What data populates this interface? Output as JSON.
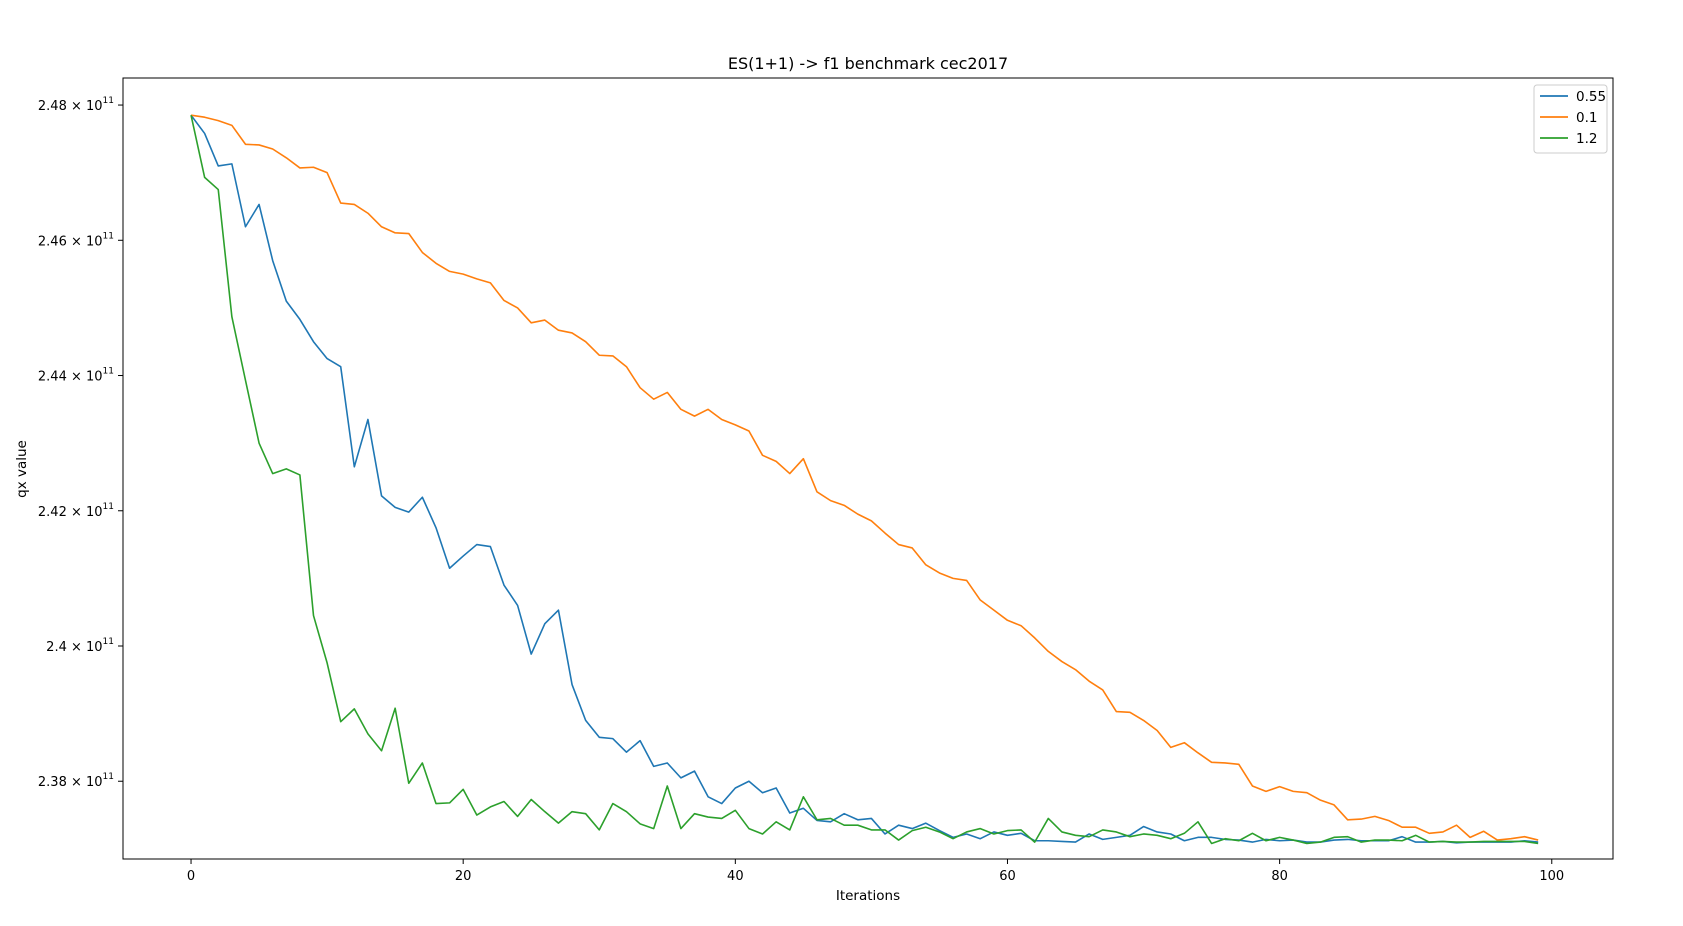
{
  "chart_data": {
    "type": "line",
    "title": "ES(1+1) -> f1 benchmark cec2017",
    "xlabel": "Iterations",
    "ylabel": "qx value",
    "xlim": [
      -5,
      104.5
    ],
    "ylim": [
      236850000000.0,
      248400000000.0
    ],
    "x_ticks": [
      0,
      20,
      40,
      60,
      80,
      100
    ],
    "x_tick_labels": [
      "0",
      "20",
      "40",
      "60",
      "80",
      "100"
    ],
    "y_ticks": [
      238000000000.0,
      240000000000.0,
      242000000000.0,
      244000000000.0,
      246000000000.0,
      248000000000.0
    ],
    "y_tick_labels": [
      {
        "mantissa": "2.38",
        "exp": "11"
      },
      {
        "mantissa": "2.4",
        "exp": "11"
      },
      {
        "mantissa": "2.42",
        "exp": "11"
      },
      {
        "mantissa": "2.44",
        "exp": "11"
      },
      {
        "mantissa": "2.46",
        "exp": "11"
      },
      {
        "mantissa": "2.48",
        "exp": "11"
      }
    ],
    "grid": false,
    "legend_position": "top-right",
    "series": [
      {
        "name": "0.55",
        "color": "#1f77b4",
        "y": [
          2.4785,
          2.4758,
          2.471,
          2.4713,
          2.462,
          2.4653,
          2.457,
          2.451,
          2.4483,
          2.445,
          2.4425,
          2.4413,
          2.4265,
          2.4335,
          2.4222,
          2.4205,
          2.4198,
          2.422,
          2.4175,
          2.4115,
          2.4133,
          2.415,
          2.4147,
          2.409,
          2.406,
          2.3988,
          2.4033,
          2.4053,
          2.3943,
          2.389,
          2.3865,
          2.3863,
          2.3843,
          2.386,
          2.3822,
          2.3827,
          2.3805,
          2.3815,
          2.3777,
          2.3767,
          2.379,
          2.38,
          2.3783,
          2.379,
          2.3753,
          2.376,
          2.3742,
          2.374,
          2.3752,
          2.3743,
          2.3745,
          2.3722,
          2.3735,
          2.373,
          2.3738,
          2.3727,
          2.3717,
          2.3722,
          2.3715,
          2.3725,
          2.372,
          2.3723,
          2.3712,
          2.3712,
          2.3711,
          2.371,
          2.3722,
          2.3714,
          2.3717,
          2.372,
          2.3733,
          2.3725,
          2.3722,
          2.3712,
          2.3717,
          2.3717,
          2.3714,
          2.3713,
          2.371,
          2.3714,
          2.3712,
          2.3713,
          2.371,
          2.371,
          2.3713,
          2.3714,
          2.3712,
          2.3712,
          2.3712,
          2.3718,
          2.371,
          2.371,
          2.3711,
          2.3709,
          2.371,
          2.371,
          2.371,
          2.371,
          2.3712,
          2.371
        ]
      },
      {
        "name": "0.1",
        "color": "#ff7f0e",
        "y": [
          2.4785,
          2.4782,
          2.4777,
          2.477,
          2.4742,
          2.4741,
          2.4735,
          2.4722,
          2.4707,
          2.4708,
          2.47,
          2.4655,
          2.4653,
          2.464,
          2.462,
          2.4611,
          2.461,
          2.4582,
          2.4566,
          2.4554,
          2.455,
          2.4543,
          2.4537,
          2.4511,
          2.45,
          2.4478,
          2.4482,
          2.4467,
          2.4463,
          2.445,
          2.443,
          2.4429,
          2.4413,
          2.4382,
          2.4365,
          2.4375,
          2.435,
          2.434,
          2.435,
          2.4335,
          2.4327,
          2.4318,
          2.4282,
          2.4273,
          2.4255,
          2.4277,
          2.4228,
          2.4215,
          2.4208,
          2.4195,
          2.4185,
          2.4167,
          2.415,
          2.4145,
          2.412,
          2.4108,
          2.41,
          2.4097,
          2.4068,
          2.4053,
          2.4038,
          2.403,
          2.4012,
          2.3992,
          2.3977,
          2.3965,
          2.3948,
          2.3935,
          2.3903,
          2.3902,
          2.389,
          2.3875,
          2.385,
          2.3857,
          2.3842,
          2.3828,
          2.3827,
          2.3825,
          2.3793,
          2.3785,
          2.3792,
          2.3785,
          2.3783,
          2.3772,
          2.3765,
          2.3743,
          2.3744,
          2.3748,
          2.3742,
          2.3732,
          2.3732,
          2.3723,
          2.3725,
          2.3735,
          2.3717,
          2.3726,
          2.3713,
          2.3715,
          2.3718,
          2.3713
        ]
      },
      {
        "name": "1.2",
        "color": "#2ca02c",
        "y": [
          2.4785,
          2.4693,
          2.4675,
          2.4487,
          2.4393,
          2.43,
          2.4255,
          2.4262,
          2.4253,
          2.4045,
          2.3975,
          2.3888,
          2.3907,
          2.387,
          2.3845,
          2.3908,
          2.3797,
          2.3827,
          2.3767,
          2.3768,
          2.3788,
          2.375,
          2.3762,
          2.377,
          2.3748,
          2.3773,
          2.3755,
          2.3738,
          2.3755,
          2.3752,
          2.3728,
          2.3767,
          2.3755,
          2.3737,
          2.373,
          2.3793,
          2.373,
          2.3752,
          2.3747,
          2.3745,
          2.3757,
          2.373,
          2.3722,
          2.374,
          2.3728,
          2.3777,
          2.3743,
          2.3745,
          2.3735,
          2.3735,
          2.3728,
          2.3728,
          2.3713,
          2.3727,
          2.3732,
          2.3725,
          2.3715,
          2.3725,
          2.373,
          2.3722,
          2.3727,
          2.3728,
          2.371,
          2.3745,
          2.3725,
          2.372,
          2.3718,
          2.3728,
          2.3725,
          2.3718,
          2.3722,
          2.372,
          2.3715,
          2.3723,
          2.374,
          2.3708,
          2.3715,
          2.3712,
          2.3723,
          2.3712,
          2.3717,
          2.3713,
          2.3708,
          2.371,
          2.3717,
          2.3718,
          2.371,
          2.3713,
          2.3713,
          2.3712,
          2.372,
          2.371,
          2.3711,
          2.371,
          2.371,
          2.3711,
          2.3711,
          2.3711,
          2.3711,
          2.3708
        ]
      }
    ]
  }
}
